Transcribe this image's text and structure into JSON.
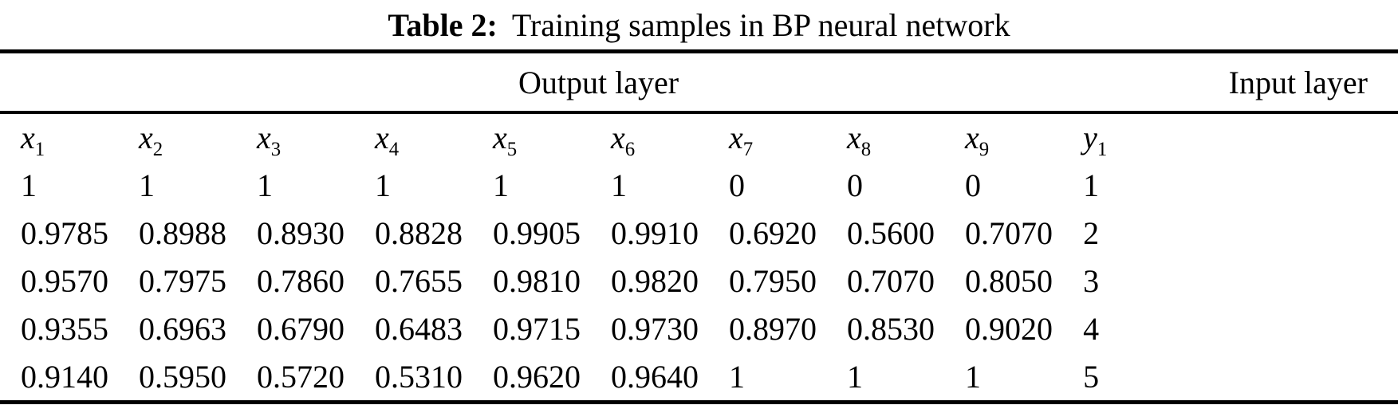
{
  "caption": {
    "label": "Table 2:",
    "text": "Training samples in BP neural network"
  },
  "table": {
    "group_headers": [
      {
        "label": "Output layer",
        "colspan": 9
      },
      {
        "label": "Input layer",
        "colspan": 1
      }
    ],
    "columns": [
      {
        "name": "x1",
        "var": "x",
        "sub": "1"
      },
      {
        "name": "x2",
        "var": "x",
        "sub": "2"
      },
      {
        "name": "x3",
        "var": "x",
        "sub": "3"
      },
      {
        "name": "x4",
        "var": "x",
        "sub": "4"
      },
      {
        "name": "x5",
        "var": "x",
        "sub": "5"
      },
      {
        "name": "x6",
        "var": "x",
        "sub": "6"
      },
      {
        "name": "x7",
        "var": "x",
        "sub": "7"
      },
      {
        "name": "x8",
        "var": "x",
        "sub": "8"
      },
      {
        "name": "x9",
        "var": "x",
        "sub": "9"
      },
      {
        "name": "y1",
        "var": "y",
        "sub": "1"
      }
    ],
    "rows": [
      [
        "1",
        "1",
        "1",
        "1",
        "1",
        "1",
        "0",
        "0",
        "0",
        "1"
      ],
      [
        "0.9785",
        "0.8988",
        "0.8930",
        "0.8828",
        "0.9905",
        "0.9910",
        "0.6920",
        "0.5600",
        "0.7070",
        "2"
      ],
      [
        "0.9570",
        "0.7975",
        "0.7860",
        "0.7655",
        "0.9810",
        "0.9820",
        "0.7950",
        "0.7070",
        "0.8050",
        "3"
      ],
      [
        "0.9355",
        "0.6963",
        "0.6790",
        "0.6483",
        "0.9715",
        "0.9730",
        "0.8970",
        "0.8530",
        "0.9020",
        "4"
      ],
      [
        "0.9140",
        "0.5950",
        "0.5720",
        "0.5310",
        "0.9620",
        "0.9640",
        "1",
        "1",
        "1",
        "5"
      ]
    ]
  },
  "colors": {
    "text": "#000000",
    "background": "#ffffff",
    "rule": "#000000"
  }
}
